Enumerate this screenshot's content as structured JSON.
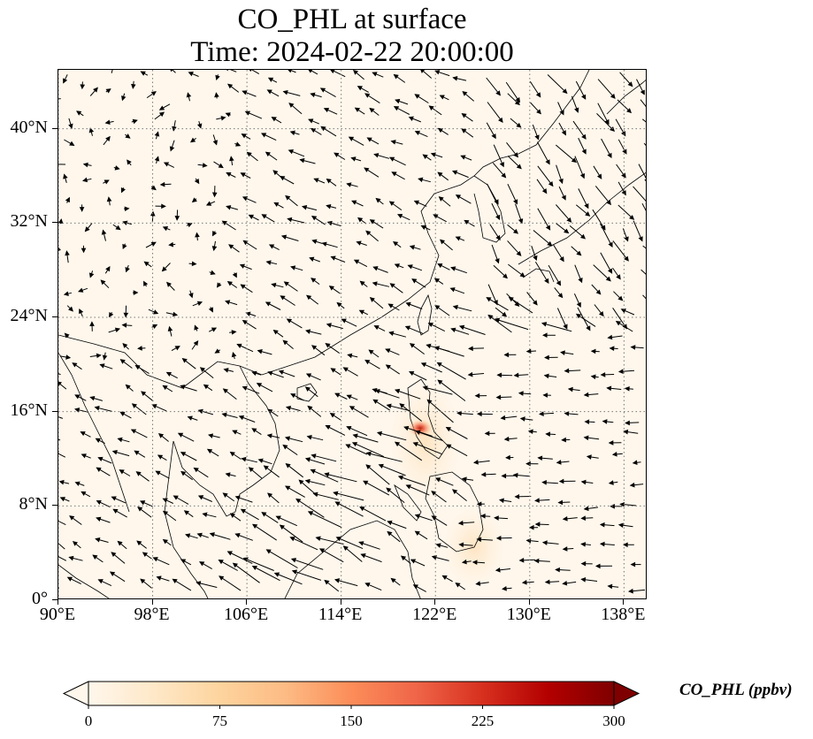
{
  "title": {
    "line1": "CO_PHL at surface",
    "line2": "Time: 2024-02-22 20:00:00"
  },
  "map": {
    "lon_range": [
      90,
      140
    ],
    "lat_range": [
      0,
      45
    ],
    "background_color": "#fff7ec",
    "gridlines": true,
    "gridline_style": "dotted",
    "x_ticks": [
      {
        "value": 90,
        "label": "90°E"
      },
      {
        "value": 98,
        "label": "98°E"
      },
      {
        "value": 106,
        "label": "106°E"
      },
      {
        "value": 114,
        "label": "114°E"
      },
      {
        "value": 122,
        "label": "122°E"
      },
      {
        "value": 130,
        "label": "130°E"
      },
      {
        "value": 138,
        "label": "138°E"
      }
    ],
    "y_ticks": [
      {
        "value": 0,
        "label": "0°"
      },
      {
        "value": 8,
        "label": "8°N"
      },
      {
        "value": 16,
        "label": "16°N"
      },
      {
        "value": 24,
        "label": "24°N"
      },
      {
        "value": 32,
        "label": "32°N"
      },
      {
        "value": 40,
        "label": "40°N"
      }
    ],
    "hotspot": {
      "lon": 120.7,
      "lat": 14.6,
      "color": "#b8200e"
    },
    "vectors": "wind vectors (quiver)"
  },
  "colorbar": {
    "label": "CO_PHL (ppbv)",
    "min": 0,
    "max": 300,
    "extend": "both",
    "colormap": [
      "#fff7ec",
      "#fee8c8",
      "#fdd49e",
      "#fdbb84",
      "#fc8d59",
      "#ef6548",
      "#d7301f",
      "#b30000",
      "#7f0000"
    ],
    "ticks": [
      {
        "value": 0,
        "label": "0"
      },
      {
        "value": 75,
        "label": "75"
      },
      {
        "value": 150,
        "label": "150"
      },
      {
        "value": 225,
        "label": "225"
      },
      {
        "value": 300,
        "label": "300"
      }
    ]
  }
}
